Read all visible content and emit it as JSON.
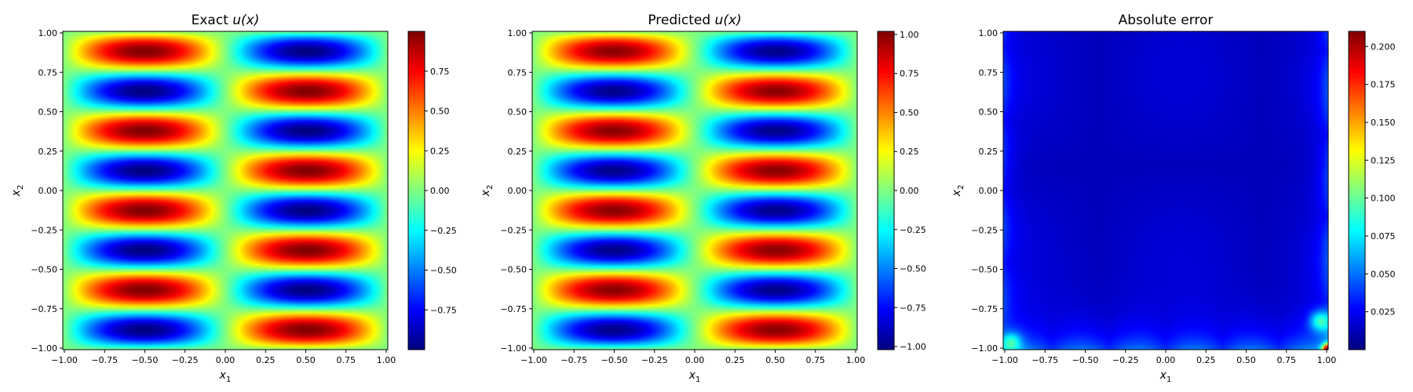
{
  "chart_data": [
    {
      "type": "heatmap",
      "title_text": "Exact ",
      "title_var": "u(x)",
      "xlabel": "x",
      "xlabel_sub": "1",
      "ylabel": "x",
      "ylabel_sub": "2",
      "xlim": [
        -1,
        1
      ],
      "ylim": [
        -1,
        1
      ],
      "xticks": [
        "−1.00",
        "−0.75",
        "−0.50",
        "−0.25",
        "0.00",
        "0.25",
        "0.50",
        "0.75",
        "1.00"
      ],
      "yticks": [
        "−1.00",
        "−0.75",
        "−0.50",
        "−0.25",
        "0.00",
        "0.25",
        "0.50",
        "0.75",
        "1.00"
      ],
      "field": "sin(pi*x1)*sin(4*pi*x2)",
      "colormap": "jet",
      "vmin": -1,
      "vmax": 1,
      "colorbar_ticks": [
        {
          "value": -0.75,
          "label": "−0.75"
        },
        {
          "value": -0.5,
          "label": "−0.50"
        },
        {
          "value": -0.25,
          "label": "−0.25"
        },
        {
          "value": 0.0,
          "label": "0.00"
        },
        {
          "value": 0.25,
          "label": "0.25"
        },
        {
          "value": 0.5,
          "label": "0.50"
        },
        {
          "value": 0.75,
          "label": "0.75"
        }
      ]
    },
    {
      "type": "heatmap",
      "title_text": "Predicted ",
      "title_var": "u(x)",
      "xlabel": "x",
      "xlabel_sub": "1",
      "ylabel": "x",
      "ylabel_sub": "2",
      "xlim": [
        -1,
        1
      ],
      "ylim": [
        -1,
        1
      ],
      "xticks": [
        "−1.00",
        "−0.75",
        "−0.50",
        "−0.25",
        "0.00",
        "0.25",
        "0.50",
        "0.75",
        "1.00"
      ],
      "yticks": [
        "−1.00",
        "−0.75",
        "−0.50",
        "−0.25",
        "0.00",
        "0.25",
        "0.50",
        "0.75",
        "1.00"
      ],
      "field": "sin(pi*x1)*sin(4*pi*x2)",
      "colormap": "jet",
      "vmin": -1.02,
      "vmax": 1.02,
      "colorbar_ticks": [
        {
          "value": -1.0,
          "label": "−1.00"
        },
        {
          "value": -0.75,
          "label": "−0.75"
        },
        {
          "value": -0.5,
          "label": "−0.50"
        },
        {
          "value": -0.25,
          "label": "−0.25"
        },
        {
          "value": 0.0,
          "label": "0.00"
        },
        {
          "value": 0.25,
          "label": "0.25"
        },
        {
          "value": 0.5,
          "label": "0.50"
        },
        {
          "value": 0.75,
          "label": "0.75"
        },
        {
          "value": 1.0,
          "label": "1.00"
        }
      ]
    },
    {
      "type": "heatmap",
      "title_text": "Absolute error",
      "title_var": "",
      "xlabel": "x",
      "xlabel_sub": "1",
      "ylabel": "x",
      "ylabel_sub": "2",
      "xlim": [
        -1,
        1
      ],
      "ylim": [
        -1,
        1
      ],
      "xticks": [
        "−1.00",
        "−0.75",
        "−0.50",
        "−0.25",
        "0.00",
        "0.25",
        "0.50",
        "0.75",
        "1.00"
      ],
      "yticks": [
        "−1.00",
        "−0.75",
        "−0.50",
        "−0.25",
        "0.00",
        "0.25",
        "0.50",
        "0.75",
        "1.00"
      ],
      "field": "abs-error",
      "colormap": "jet",
      "vmin": 0,
      "vmax": 0.21,
      "colorbar_ticks": [
        {
          "value": 0.025,
          "label": "0.025"
        },
        {
          "value": 0.05,
          "label": "0.050"
        },
        {
          "value": 0.075,
          "label": "0.075"
        },
        {
          "value": 0.1,
          "label": "0.100"
        },
        {
          "value": 0.125,
          "label": "0.125"
        },
        {
          "value": 0.15,
          "label": "0.150"
        },
        {
          "value": 0.175,
          "label": "0.175"
        },
        {
          "value": 0.2,
          "label": "0.200"
        }
      ]
    }
  ]
}
